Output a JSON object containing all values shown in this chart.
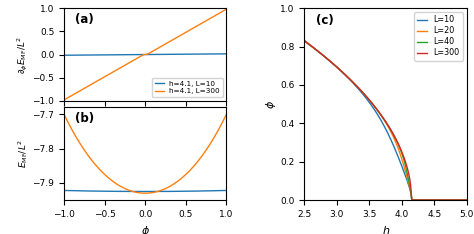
{
  "panel_a": {
    "label": "(a)",
    "ylim": [
      -1.0,
      1.0
    ],
    "xlim": [
      -1.0,
      1.0
    ],
    "yticks": [
      -1.0,
      -0.5,
      0.0,
      0.5,
      1.0
    ],
    "xticks": [
      -1.0,
      -0.5,
      0.0,
      0.5,
      1.0
    ],
    "ylabel": "$\\partial_\\phi E_{\\rm MF}/L^2$",
    "legend": [
      {
        "label": "h=4.1, L=10",
        "color": "#1f77b4"
      },
      {
        "label": "h=4.1, L=300",
        "color": "#ff7f0e"
      }
    ]
  },
  "panel_b": {
    "label": "(b)",
    "ylim": [
      -7.95,
      -7.68
    ],
    "xlim": [
      -1.0,
      1.0
    ],
    "yticks": [
      -7.9,
      -7.8,
      -7.7
    ],
    "xticks": [
      -1.0,
      -0.5,
      0.0,
      0.5,
      1.0
    ],
    "ylabel": "$E_{\\rm MF}/L^2$",
    "xlabel": "$\\phi$"
  },
  "panel_c": {
    "label": "(c)",
    "ylim": [
      0.0,
      1.0
    ],
    "xlim": [
      2.5,
      5.0
    ],
    "yticks": [
      0.0,
      0.2,
      0.4,
      0.6,
      0.8,
      1.0
    ],
    "xticks": [
      2.5,
      3.0,
      3.5,
      4.0,
      4.5,
      5.0
    ],
    "ylabel": "$\\phi$",
    "xlabel": "$h$",
    "legend": [
      {
        "label": "L=10",
        "color": "#1f77b4"
      },
      {
        "label": "L=20",
        "color": "#ff7f0e"
      },
      {
        "label": "L=40",
        "color": "#2ca02c"
      },
      {
        "label": "L=300",
        "color": "#d62728"
      }
    ]
  },
  "color_L10": "#1f77b4",
  "color_L300_ab": "#ff7f0e",
  "color_L20": "#ff7f0e",
  "color_L40": "#2ca02c",
  "color_L300_c": "#d62728"
}
